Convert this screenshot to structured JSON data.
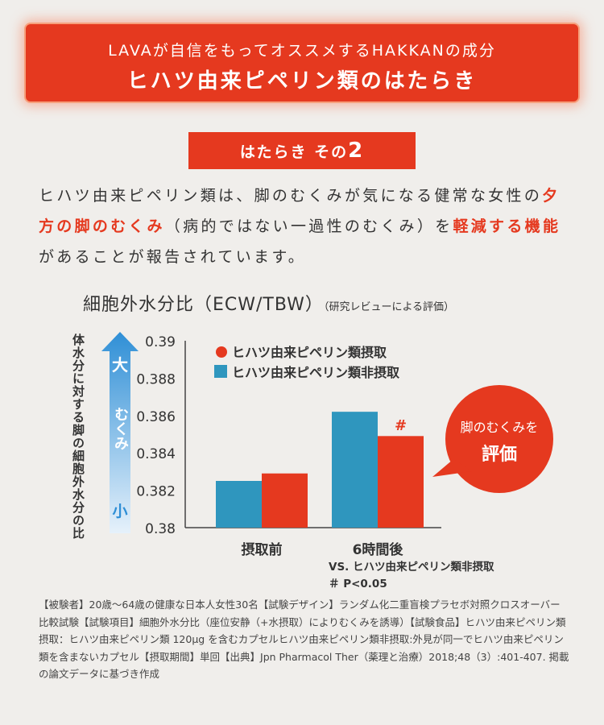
{
  "banner": {
    "line1": "LAVAが自信をもってオススメするHAKKANの成分",
    "line2": "ヒハツ由来ピペリン類のはたらき"
  },
  "tag": {
    "text": "はたらき その",
    "number": "2"
  },
  "intro": {
    "p1": "ヒハツ由来ピペリン類は、脚のむくみが気になる健常な女性の",
    "h1": "夕方の脚のむくみ",
    "p2": "（病的ではない一過性のむくみ）を",
    "h2": "軽減する機能",
    "p3": "があることが報告されています。"
  },
  "chart_title": {
    "main": "細胞外水分比（ECW/TBW）",
    "sub": "（研究レビューによる評価）"
  },
  "y_axis_vertical_label": "体水分に対する脚の細胞外水分の比",
  "arrow": {
    "top": "大",
    "middle": "むくみ",
    "bottom": "小"
  },
  "callout": {
    "line1": "脚のむくみを",
    "line2": "評価"
  },
  "significance_mark": "#",
  "ref_note": {
    "line1": "VS. ヒハツ由来ピペリン類非摂取",
    "line2": "＃ P<0.05"
  },
  "footnote": "【被験者】20歳～64歳の健康な日本人女性30名【試験デザイン】ランダム化二重盲検プラセボ対照クロスオーバー比較試験【試験項目】細胞外水分比（座位安静（+水摂取）によりむくみを誘導）【試験食品】ヒハツ由来ピペリン類摂取：ヒハツ由来ピペリン類 120μg を含むカプセルヒハツ由来ピペリン類非摂取:外見が同一でヒハツ由来ピペリン類を含まないカプセル【摂取期間】単回【出典】Jpn Pharmacol Ther（薬理と治療）2018;48（3）:401-407. 掲載の論文データに基づき作成",
  "colors": {
    "red": "#e5391f",
    "blue": "#2f96be",
    "arrow_top": "#2f8fd6",
    "arrow_bottom": "#e6f1fb"
  },
  "chart_data": {
    "type": "bar",
    "categories": [
      "摂取前",
      "6時間後"
    ],
    "series": [
      {
        "name": "ヒハツ由来ピペリン類非摂取",
        "color": "#2f96be",
        "values": [
          0.3825,
          0.3862
        ]
      },
      {
        "name": "ヒハツ由来ピペリン類摂取",
        "color": "#e5391f",
        "values": [
          0.3829,
          0.3849
        ]
      }
    ],
    "legend_order": [
      "ヒハツ由来ピペリン類摂取",
      "ヒハツ由来ピペリン類非摂取"
    ],
    "legend_placement": "top",
    "ylim": [
      0.38,
      0.39
    ],
    "yticks": [
      "0.39",
      "0.388",
      "0.386",
      "0.384",
      "0.382",
      "0.38"
    ],
    "grid": false
  }
}
